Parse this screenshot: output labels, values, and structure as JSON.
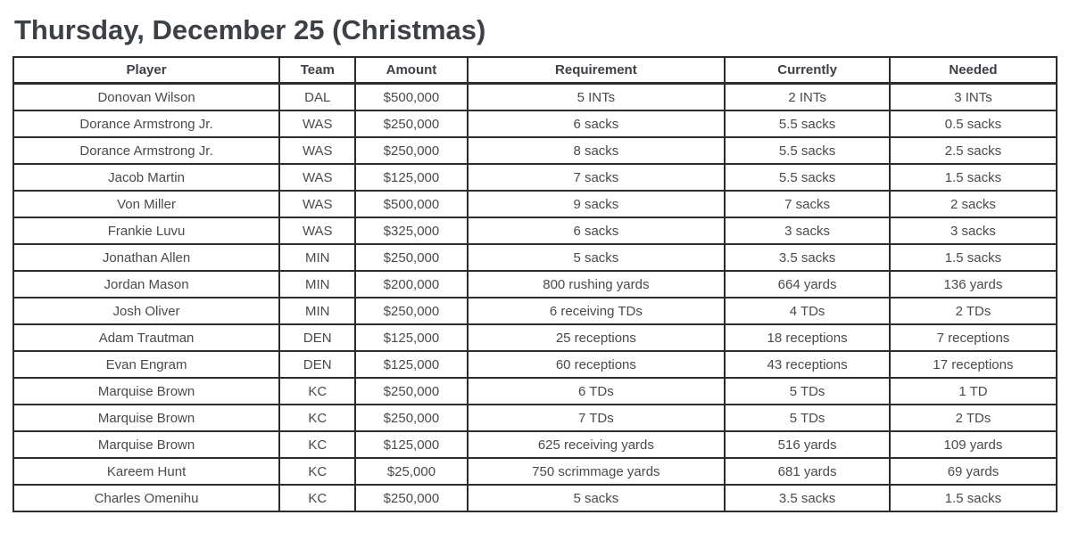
{
  "page": {
    "title": "Thursday, December 25 (Christmas)"
  },
  "colors": {
    "background": "#ffffff",
    "border": "#2c2c2c",
    "heading_text": "#3d4045",
    "cell_text": "#4a4a4a"
  },
  "table": {
    "columns": [
      "Player",
      "Team",
      "Amount",
      "Requirement",
      "Currently",
      "Needed"
    ],
    "rows": [
      [
        "Donovan Wilson",
        "DAL",
        "$500,000",
        "5 INTs",
        "2 INTs",
        "3 INTs"
      ],
      [
        "Dorance Armstrong Jr.",
        "WAS",
        "$250,000",
        "6 sacks",
        "5.5 sacks",
        "0.5 sacks"
      ],
      [
        "Dorance Armstrong Jr.",
        "WAS",
        "$250,000",
        "8 sacks",
        "5.5 sacks",
        "2.5 sacks"
      ],
      [
        "Jacob Martin",
        "WAS",
        "$125,000",
        "7 sacks",
        "5.5 sacks",
        "1.5 sacks"
      ],
      [
        "Von Miller",
        "WAS",
        "$500,000",
        "9 sacks",
        "7 sacks",
        "2 sacks"
      ],
      [
        "Frankie Luvu",
        "WAS",
        "$325,000",
        "6 sacks",
        "3 sacks",
        "3 sacks"
      ],
      [
        "Jonathan Allen",
        "MIN",
        "$250,000",
        "5 sacks",
        "3.5 sacks",
        "1.5 sacks"
      ],
      [
        "Jordan Mason",
        "MIN",
        "$200,000",
        "800 rushing yards",
        "664 yards",
        "136 yards"
      ],
      [
        "Josh Oliver",
        "MIN",
        "$250,000",
        "6 receiving TDs",
        "4 TDs",
        "2 TDs"
      ],
      [
        "Adam Trautman",
        "DEN",
        "$125,000",
        "25 receptions",
        "18 receptions",
        "7 receptions"
      ],
      [
        "Evan Engram",
        "DEN",
        "$125,000",
        "60 receptions",
        "43 receptions",
        "17 receptions"
      ],
      [
        "Marquise Brown",
        "KC",
        "$250,000",
        "6 TDs",
        "5 TDs",
        "1 TD"
      ],
      [
        "Marquise Brown",
        "KC",
        "$250,000",
        "7 TDs",
        "5 TDs",
        "2 TDs"
      ],
      [
        "Marquise Brown",
        "KC",
        "$125,000",
        "625 receiving yards",
        "516 yards",
        "109 yards"
      ],
      [
        "Kareem Hunt",
        "KC",
        "$25,000",
        "750 scrimmage yards",
        "681 yards",
        "69 yards"
      ],
      [
        "Charles Omenihu",
        "KC",
        "$250,000",
        "5 sacks",
        "3.5 sacks",
        "1.5 sacks"
      ]
    ]
  }
}
